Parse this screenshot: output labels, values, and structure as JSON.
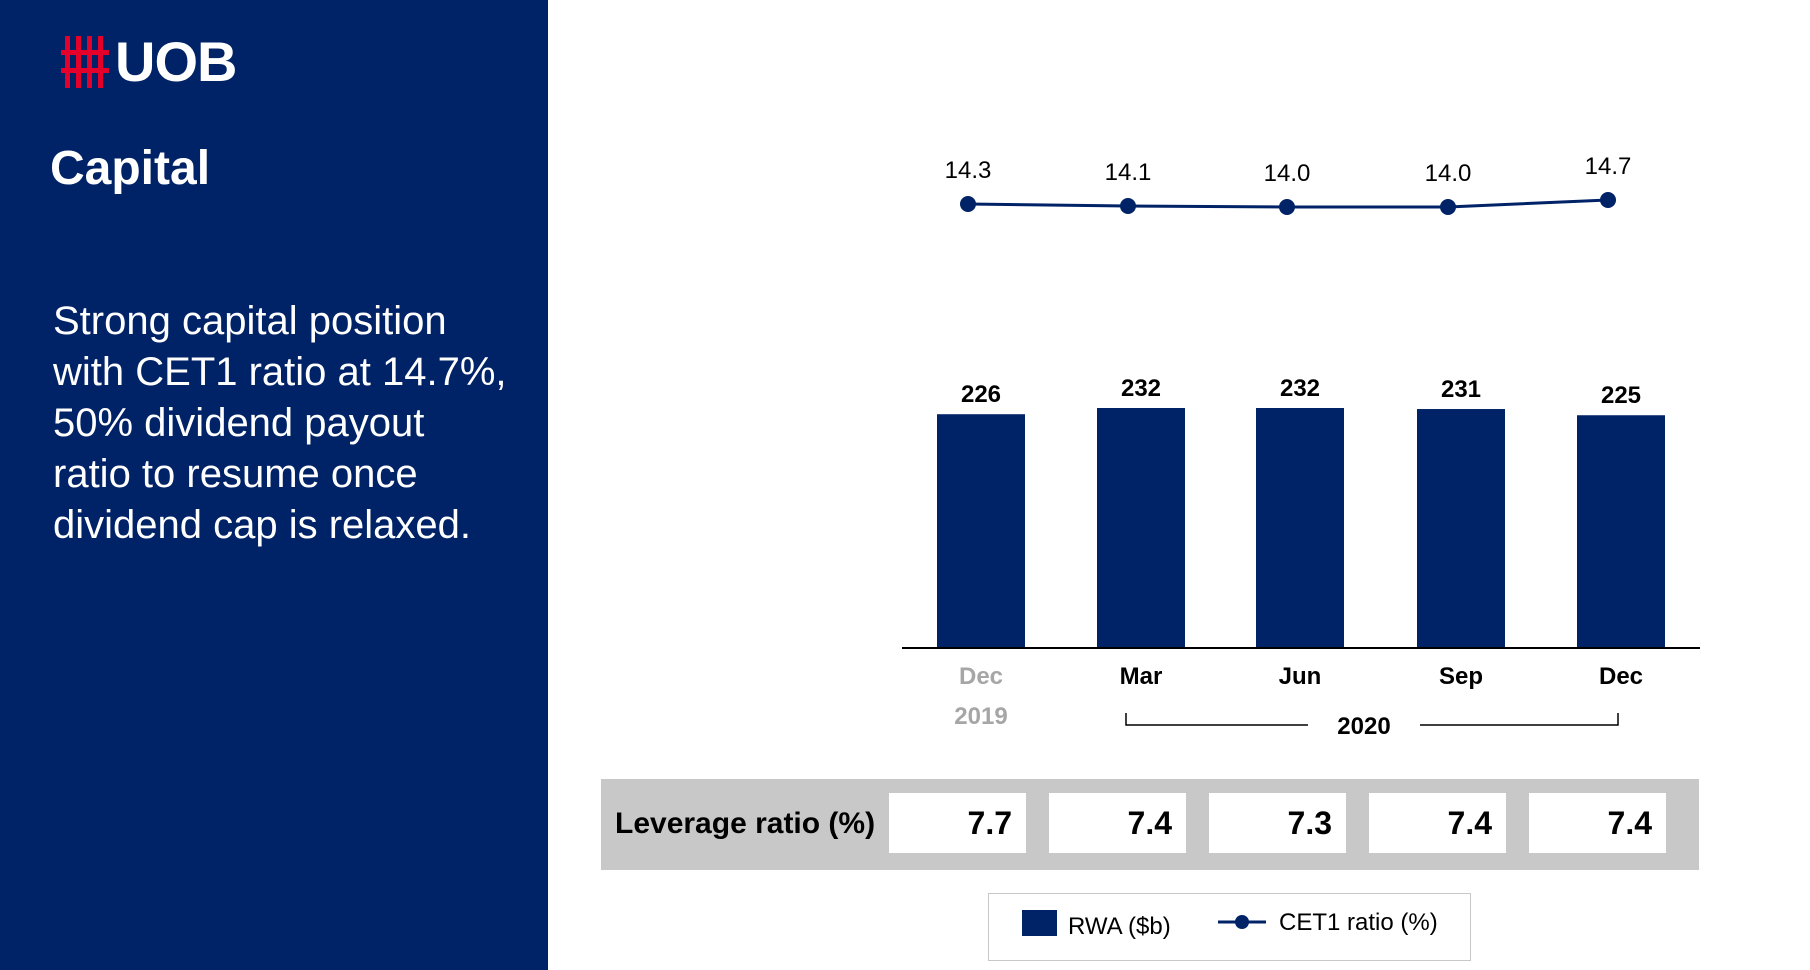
{
  "brand": {
    "logo_text": "UOB",
    "logo_icon": "uob-logo-icon",
    "primary_color": "#002266",
    "accent_color": "#e4002b"
  },
  "page": {
    "title": "Capital",
    "summary": "Strong capital position with CET1 ratio at 14.7%, 50% dividend payout ratio to resume once dividend cap is relaxed."
  },
  "chart_data": {
    "type": "bar",
    "categories": [
      "Dec",
      "Mar",
      "Jun",
      "Sep",
      "Dec"
    ],
    "year_labels": {
      "2019": "2019",
      "2020": "2020"
    },
    "series": [
      {
        "name": "RWA ($b)",
        "type": "bar",
        "values": [
          226,
          232,
          232,
          231,
          225
        ],
        "color": "#002266"
      },
      {
        "name": "CET1 ratio (%)",
        "type": "line",
        "values": [
          14.3,
          14.1,
          14.0,
          14.0,
          14.7
        ],
        "color": "#002266"
      }
    ],
    "category_colors": [
      "#a6a6a6",
      "#000000",
      "#000000",
      "#000000",
      "#000000"
    ],
    "legend_position": "bottom",
    "grid": false
  },
  "leverage": {
    "label": "Leverage ratio (%)",
    "values": [
      "7.7",
      "7.4",
      "7.3",
      "7.4",
      "7.4"
    ]
  },
  "legend": {
    "items": [
      {
        "label": "RWA ($b)",
        "icon": "bar-swatch"
      },
      {
        "label": "CET1 ratio (%)",
        "icon": "line-marker"
      }
    ]
  }
}
